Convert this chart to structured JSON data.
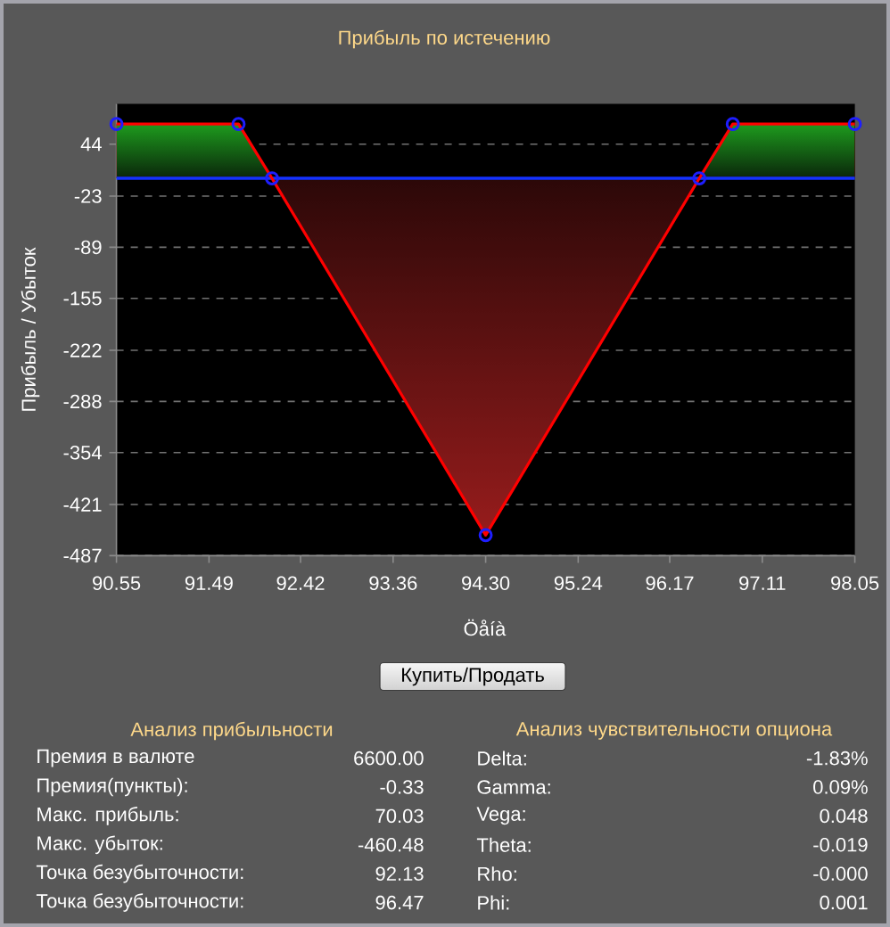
{
  "chart_data": [
    {
      "type": "area",
      "title": "Прибыль по истечению",
      "xlabel": "Öåíà",
      "ylabel": "Прибыль / Убыток",
      "x": [
        90.55,
        91.79,
        92.13,
        94.3,
        96.47,
        96.81,
        98.05
      ],
      "series": [
        {
          "color": "#ff0000",
          "values": [
            70.03,
            70.03,
            0,
            -460.48,
            0,
            70.03,
            70.03
          ]
        }
      ],
      "xlim": [
        90.55,
        98.05
      ],
      "ylim": [
        -487,
        96
      ],
      "xticks": [
        90.55,
        91.49,
        92.42,
        93.36,
        {
          "value": 94.3,
          "label": "94.30"
        },
        95.24,
        96.17,
        97.11,
        98.05
      ],
      "yticks": [
        -487,
        -421,
        -354,
        -288,
        -222,
        -155,
        -89,
        -23,
        44
      ],
      "grid": "y",
      "marker": "circle",
      "ref_lines": [
        {
          "axis": "y",
          "value": 0,
          "color": "#1432ff"
        }
      ],
      "annotations": [
        "Купить/Продать"
      ]
    },
    {
      "type": "other",
      "title": "Анализ прибыльности",
      "annotations": [
        "Премия в валюте",
        "6600.00",
        "Премия(пункты):",
        "-0.33",
        "Макс. прибыль:",
        "70.03",
        "Макс. убыток:",
        "-460.48",
        "Точка безубыточности:",
        "92.13",
        "Точка безубыточности:",
        "96.47"
      ]
    },
    {
      "type": "other",
      "title": "Анализ чувствительности опциона",
      "annotations": [
        "Delta:",
        "-1.83%",
        "Gamma:",
        "0.09%",
        "Vega:",
        "0.048",
        "Theta:",
        "-0.019",
        "Rho:",
        "-0.000",
        "Phi:",
        "0.001"
      ]
    }
  ]
}
